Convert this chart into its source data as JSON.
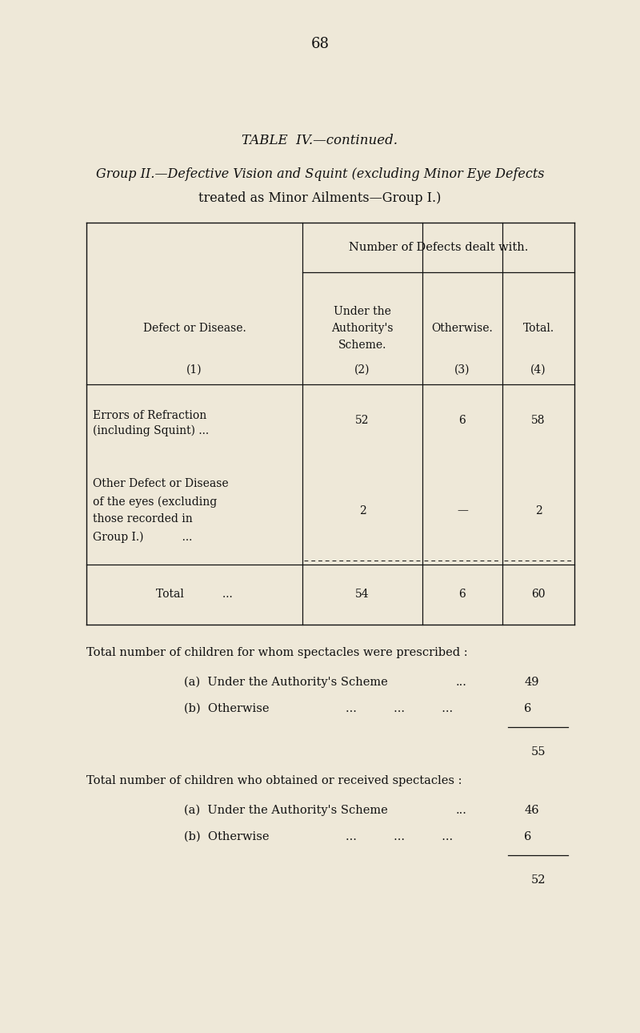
{
  "bg_color": "#eee8d8",
  "text_color": "#111111",
  "page_number": "68",
  "title_main": "TABLE  IV.—continued.",
  "title_sub1": "Group II.—Defective Vision and Squint (excluding Minor Eye Defects",
  "title_sub2": "treated as Minor Ailments—Group I.)",
  "col_header_span": "Number of Defects dealt with.",
  "col1_header": "Defect or Disease.",
  "col2_header": "Under the\nAuthority's\nScheme.",
  "col3_header": "Otherwise.",
  "col4_header": "Total.",
  "col_nums": [
    "(1)",
    "(2)",
    "(3)",
    "(4)"
  ],
  "row1_label_line1": "Errors of Refraction",
  "row1_label_line2": "(including Squint) ...",
  "row1_vals": [
    "52",
    "6",
    "58"
  ],
  "row2_label_line1": "Other Defect or Disease",
  "row2_label_line2": "of the eyes (excluding",
  "row2_label_line3": "those recorded in",
  "row2_label_line4": "Group I.)           ...",
  "row2_vals": [
    "2",
    "—",
    "2"
  ],
  "row3_label": "Total           ...",
  "row3_vals": [
    "54",
    "6",
    "60"
  ],
  "footer1_line": "Total number of children for whom spectacles were prescribed :",
  "footer1_a_label": "(a)  Under the Authority's Scheme",
  "footer1_a_dots": "...",
  "footer1_a_val": "49",
  "footer1_b_label": "(b)  Otherwise",
  "footer1_b_dots": "...          ...          ...",
  "footer1_b_val": "6",
  "footer1_total": "55",
  "footer2_line": "Total number of children who obtained or received spectacles :",
  "footer2_a_label": "(a)  Under the Authority's Scheme",
  "footer2_a_dots": "...",
  "footer2_a_val": "46",
  "footer2_b_label": "(b)  Otherwise",
  "footer2_b_dots": "...          ...          ...",
  "footer2_b_val": "6",
  "footer2_total": "52",
  "fig_width": 8.0,
  "fig_height": 12.9
}
